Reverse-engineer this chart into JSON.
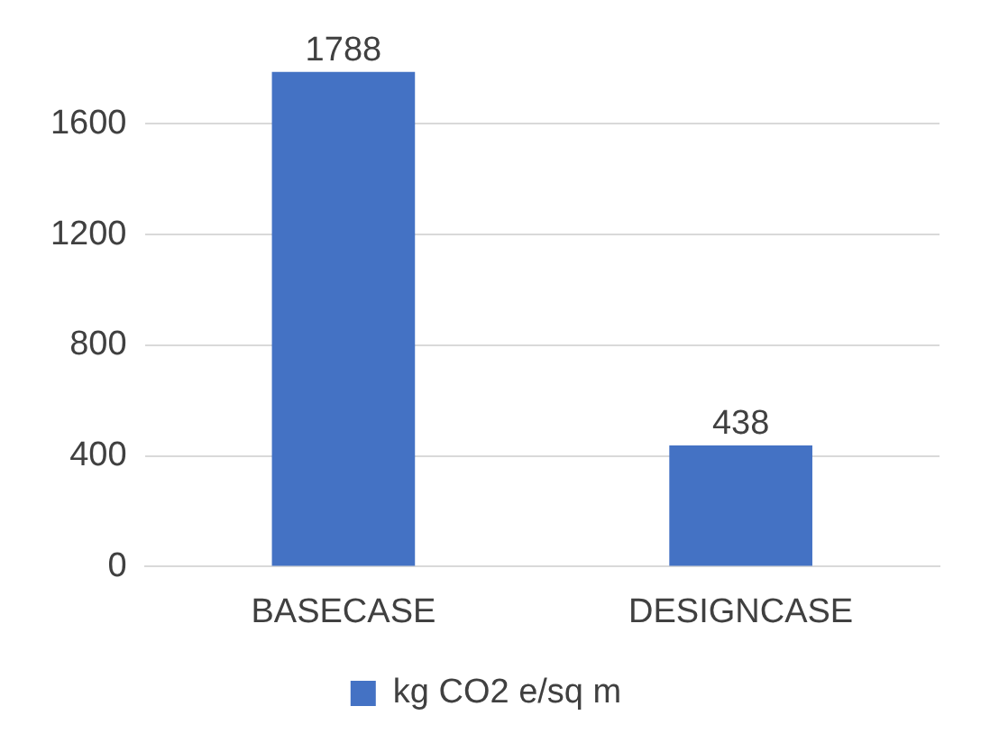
{
  "chart_data": {
    "type": "bar",
    "categories": [
      "BASECASE",
      "DESIGNCASE"
    ],
    "series": [
      {
        "name": "kg CO2 e/sq m",
        "color": "#4472c4",
        "values": [
          1788,
          438
        ]
      }
    ],
    "ylim": [
      0,
      1800
    ],
    "yticks": [
      0,
      400,
      800,
      1200,
      1600
    ],
    "grid": "y",
    "legend": "bottom",
    "data_labels": true
  }
}
